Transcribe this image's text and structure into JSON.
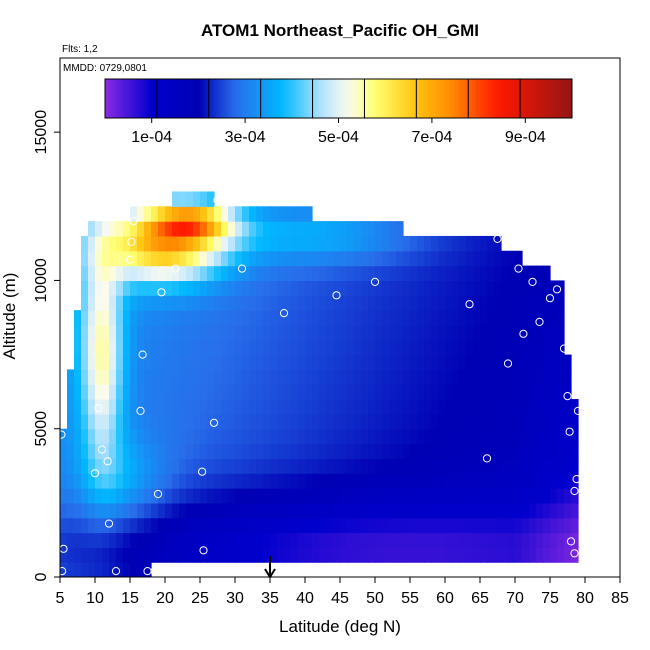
{
  "chart_data": {
    "type": "heatmap",
    "title": "ATOM1 Northeast_Pacific OH_GMI",
    "annotations": [
      "Flts: 1,2",
      "MMDD: 0729,0801"
    ],
    "xlabel": "Latitude (deg N)",
    "ylabel": "Altitude (m)",
    "xlim": [
      5,
      85
    ],
    "ylim": [
      0,
      17500
    ],
    "x_ticks": [
      5,
      10,
      15,
      20,
      25,
      30,
      35,
      40,
      45,
      50,
      55,
      60,
      65,
      70,
      75,
      80,
      85
    ],
    "y_ticks": [
      0,
      5000,
      10000,
      15000
    ],
    "colorbar": {
      "ticks": [
        "1e-04",
        "3e-04",
        "5e-04",
        "7e-04",
        "9e-04"
      ],
      "range": [
        0,
        0.001
      ],
      "colors": [
        "#8a2be2",
        "#0000cd",
        "#1e90ff",
        "#00bfff",
        "#f8f8ff",
        "#ffff66",
        "#ffa500",
        "#ff0000",
        "#a52a2a"
      ]
    },
    "marker_latitude": 35,
    "observation_points": [
      [
        5.2,
        4800
      ],
      [
        5.3,
        200
      ],
      [
        5.5,
        950
      ],
      [
        10,
        3500
      ],
      [
        10.5,
        5700
      ],
      [
        11,
        4300
      ],
      [
        11.8,
        3900
      ],
      [
        12,
        1800
      ],
      [
        13,
        200
      ],
      [
        15,
        10700
      ],
      [
        15.2,
        11300
      ],
      [
        15.5,
        12000
      ],
      [
        16.5,
        5600
      ],
      [
        16.8,
        7500
      ],
      [
        17.5,
        200
      ],
      [
        18.5,
        200
      ],
      [
        19,
        2800
      ],
      [
        19.5,
        9600
      ],
      [
        21.5,
        10400
      ],
      [
        25.3,
        3550
      ],
      [
        25.5,
        900
      ],
      [
        27,
        5200
      ],
      [
        27.5,
        12700
      ],
      [
        31,
        10400
      ],
      [
        37,
        8900
      ],
      [
        44.5,
        9500
      ],
      [
        50,
        9950
      ],
      [
        63.5,
        9200
      ],
      [
        66,
        4000
      ],
      [
        67.5,
        11400
      ],
      [
        69,
        7200
      ],
      [
        70.5,
        10400
      ],
      [
        71.2,
        8200
      ],
      [
        72.5,
        9950
      ],
      [
        73.5,
        8600
      ],
      [
        75,
        9400
      ],
      [
        76,
        9700
      ],
      [
        77,
        7700
      ],
      [
        77.5,
        6100
      ],
      [
        77.8,
        4900
      ],
      [
        78,
        1200
      ],
      [
        78.5,
        2900
      ],
      [
        78.8,
        3300
      ],
      [
        78.5,
        800
      ],
      [
        79,
        5600
      ]
    ]
  }
}
